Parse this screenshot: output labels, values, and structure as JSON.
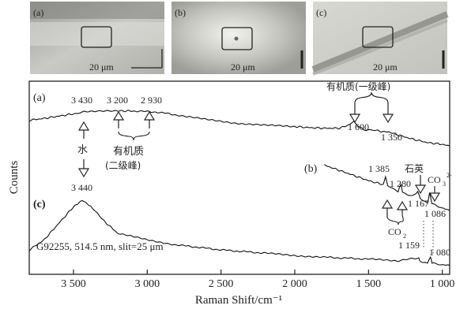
{
  "photos": [
    {
      "label": "(a)",
      "scale_text": "20 μm"
    },
    {
      "label": "(b)",
      "scale_text": "20 μm"
    },
    {
      "label": "(c)",
      "scale_text": "20 μm"
    }
  ],
  "chart_data": {
    "type": "line",
    "title": "",
    "xlabel": "Raman Shift/cm⁻¹",
    "ylabel": "Counts",
    "xlim": [
      3800,
      950
    ],
    "x_reversed": true,
    "xticks": [
      3500,
      3000,
      2500,
      2000,
      1500,
      1000
    ],
    "xtick_labels": [
      "3 500",
      "3 000",
      "2 500",
      "2 000",
      "1 500",
      "1 000"
    ],
    "series": [
      {
        "name": "(a)",
        "x": [
          3800,
          3700,
          3600,
          3500,
          3430,
          3350,
          3200,
          3100,
          2930,
          2800,
          2600,
          2400,
          2200,
          2000,
          1900,
          1800,
          1700,
          1650,
          1600,
          1560,
          1520,
          1450,
          1400,
          1350,
          1300,
          1200,
          1100,
          1000,
          950
        ],
        "y": [
          72,
          75,
          79,
          83,
          86,
          87,
          88,
          88,
          86,
          81,
          73,
          67,
          63,
          61,
          59,
          58,
          58,
          62,
          69,
          60,
          55,
          54,
          52,
          51,
          46,
          39,
          33,
          30,
          27
        ]
      },
      {
        "name": "(b)",
        "x": [
          1800,
          1700,
          1600,
          1500,
          1400,
          1385,
          1370,
          1300,
          1280,
          1270,
          1200,
          1167,
          1150,
          1100,
          1086,
          1070,
          1000,
          950
        ],
        "y": [
          44,
          40,
          36,
          32,
          29,
          35,
          28,
          24,
          29,
          23,
          20,
          24,
          18,
          15,
          23,
          14,
          11,
          9
        ]
      },
      {
        "name": "(c)",
        "x": [
          3800,
          3700,
          3600,
          3500,
          3440,
          3380,
          3300,
          3200,
          3000,
          2800,
          2500,
          2200,
          2000,
          1800,
          1500,
          1300,
          1159,
          1150,
          1100,
          1080,
          1070,
          1000,
          950
        ],
        "y": [
          5,
          8,
          13,
          18,
          20,
          18,
          14,
          10,
          8,
          6.5,
          5,
          4,
          3.3,
          2.8,
          2.2,
          1.7,
          2.6,
          1.4,
          1.1,
          3,
          0.9,
          0.5,
          0.3
        ]
      }
    ],
    "annotations": {
      "a_peaks": [
        "3 430",
        "3 200",
        "2 930"
      ],
      "a_peaks2": [
        "1 600",
        "1 350"
      ],
      "water": "水",
      "organic_second": "有机质",
      "organic_second_sub": "(二级峰)",
      "organic_first": "有机质(一级峰)",
      "b_peaks": [
        "1 385",
        "1 280",
        "1 167",
        "1 086"
      ],
      "quartz": "石英",
      "co3": "CO",
      "co3_sub": "3",
      "co3_sup": "2-",
      "co2": "CO",
      "co2_sub": "2",
      "c_peak": "3 440",
      "c_peaks": [
        "1 159",
        "1 080"
      ],
      "info": "G92255, 514.5 nm, slit=25 μm"
    }
  }
}
